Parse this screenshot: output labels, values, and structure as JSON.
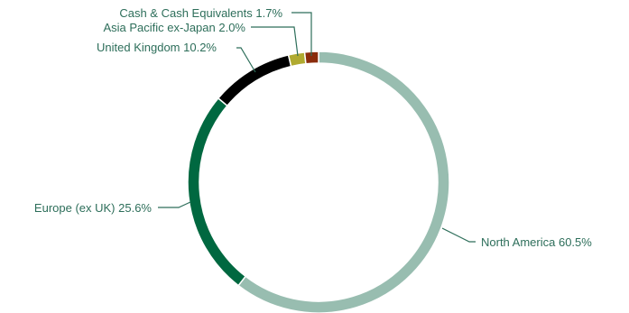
{
  "chart_data": {
    "type": "pie",
    "style": "donut",
    "title": "",
    "slices": [
      {
        "label": "North America",
        "value": 60.5,
        "color": "#98bdb0"
      },
      {
        "label": "Europe (ex UK)",
        "value": 25.6,
        "color": "#006840"
      },
      {
        "label": "United Kingdom",
        "value": 10.2,
        "color": "#000000"
      },
      {
        "label": "Asia Pacific ex-Japan",
        "value": 2.0,
        "color": "#b0aa30"
      },
      {
        "label": "Cash & Cash Equivalents",
        "value": 1.7,
        "color": "#8a2c0c"
      }
    ],
    "label_texts": [
      "North America 60.5%",
      "Europe (ex UK) 25.6%",
      "United Kingdom 10.2%",
      "Asia Pacific ex-Japan 2.0%",
      "Cash & Cash Equivalents 1.7%"
    ],
    "label_color": "#2d6e5a"
  }
}
